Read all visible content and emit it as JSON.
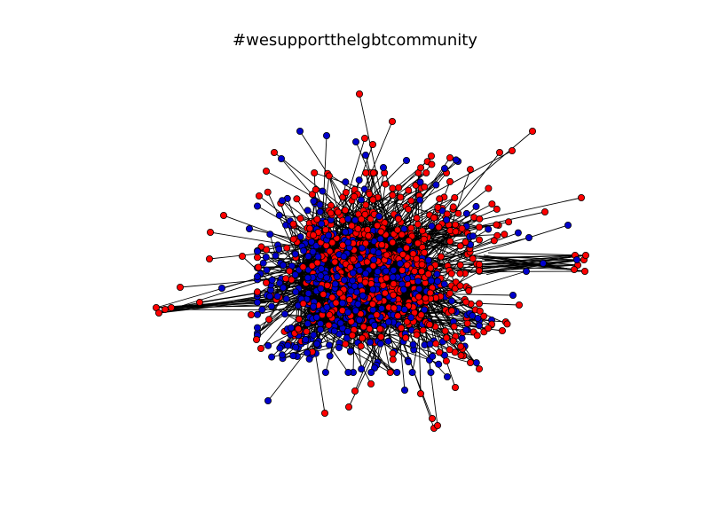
{
  "figure": {
    "title": "#wesupportthelgbtcommunity"
  },
  "chart_data": {
    "type": "network",
    "title": "#wesupportthelgbtcommunity",
    "node_classes": [
      {
        "color": "#ff0000",
        "approx_count": 600
      },
      {
        "color": "#0000cc",
        "approx_count": 550
      }
    ],
    "edge_color": "#000000",
    "node_outline_color": "#000000",
    "axes_visible": false,
    "grid": false,
    "legend": "none"
  }
}
